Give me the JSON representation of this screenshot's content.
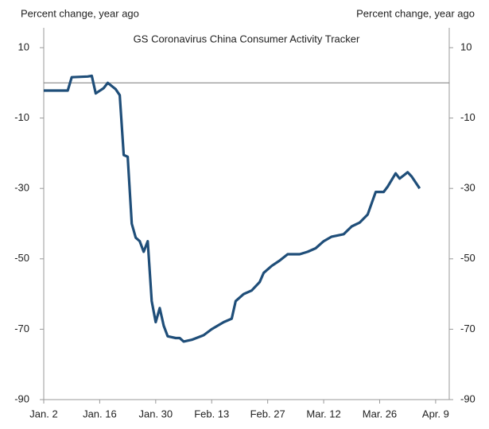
{
  "chart_data": {
    "type": "line",
    "title": "GS Coronavirus  China Consumer Activity Tracker",
    "y_label": "Percent change, year ago",
    "y2_label": "Percent change, year ago",
    "x": [
      0,
      6,
      7,
      11,
      12,
      13,
      15,
      16,
      18,
      19,
      20,
      21,
      22,
      23,
      24,
      25,
      26,
      27,
      28,
      29,
      30,
      31,
      33,
      34,
      35,
      37,
      40,
      42,
      45,
      47,
      48,
      50,
      52,
      54,
      55,
      57,
      59,
      61,
      64,
      66,
      68,
      70,
      72,
      75,
      77,
      79,
      81,
      83,
      85,
      86,
      88,
      89,
      91,
      92,
      94
    ],
    "series": [
      {
        "name": "GS Coronavirus China Consumer Activity Tracker",
        "color": "#1f4e79",
        "values": [
          -2.2,
          -2.2,
          1.6,
          1.8,
          2,
          -3,
          -1.5,
          0,
          -1.8,
          -3.5,
          -20.5,
          -21,
          -40,
          -44,
          -45,
          -48,
          -45,
          -62,
          -68,
          -64,
          -69,
          -72,
          -72.5,
          -72.5,
          -73.5,
          -73,
          -71.7,
          -70,
          -68,
          -67,
          -62,
          -60,
          -59,
          -56.6,
          -54,
          -52,
          -50.5,
          -48.7,
          -48.7,
          -48,
          -47,
          -45,
          -43.7,
          -43,
          -40.8,
          -39.7,
          -37.4,
          -31,
          -31,
          -29.5,
          -25.7,
          -27.2,
          -25.4,
          -26.6,
          -30
        ]
      }
    ],
    "xlim": [
      0,
      101.4
    ],
    "xticks": [
      {
        "value": 0,
        "label": "Jan. 2"
      },
      {
        "value": 14,
        "label": "Jan. 16"
      },
      {
        "value": 28,
        "label": "Jan. 30"
      },
      {
        "value": 42,
        "label": "Feb. 13"
      },
      {
        "value": 56,
        "label": "Feb. 27"
      },
      {
        "value": 70,
        "label": "Mar. 12"
      },
      {
        "value": 84,
        "label": "Mar. 26"
      },
      {
        "value": 98,
        "label": "Apr. 9"
      }
    ],
    "ylim": [
      -90,
      10
    ],
    "yticks": [
      -90,
      -70,
      -50,
      -30,
      -10,
      10
    ],
    "y2lim": [
      -90,
      10
    ],
    "y2ticks": [
      -90,
      -70,
      -50,
      -30,
      -10,
      10
    ],
    "reference_line": 0
  }
}
